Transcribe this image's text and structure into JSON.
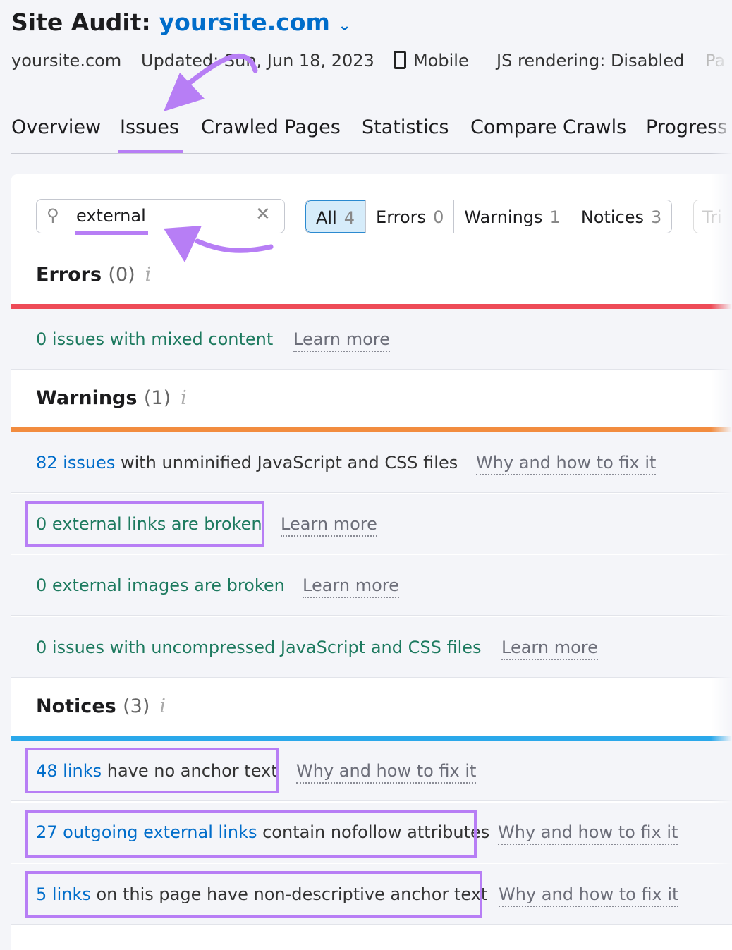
{
  "header": {
    "title": "Site Audit:",
    "project": "yoursite.com",
    "meta": {
      "domain": "yoursite.com",
      "updated": "Updated: Sun, Jun 18, 2023",
      "device": "Mobile",
      "js": "JS rendering: Disabled",
      "more": "Pa"
    }
  },
  "tabs": [
    "Overview",
    "Issues",
    "Crawled Pages",
    "Statistics",
    "Compare Crawls",
    "Progress"
  ],
  "active_tab": "Issues",
  "search": {
    "value": "external"
  },
  "filters": [
    {
      "label": "All",
      "count": "4"
    },
    {
      "label": "Errors",
      "count": "0"
    },
    {
      "label": "Warnings",
      "count": "1"
    },
    {
      "label": "Notices",
      "count": "3"
    }
  ],
  "filter_extra": "Tri",
  "sections": {
    "errors": {
      "label": "Errors",
      "count": "(0)",
      "color": "#ee4b57",
      "rows": [
        {
          "pre": "0 issues with mixed content",
          "link": "Learn more"
        }
      ]
    },
    "warnings": {
      "label": "Warnings",
      "count": "(1)",
      "color": "#f28c3f",
      "rows": [
        {
          "num": "82 issues",
          "rest": " with unminified JavaScript and CSS files",
          "link": "Why and how to fix it"
        },
        {
          "pre": "0 external links are broken",
          "link": "Learn more"
        },
        {
          "pre": "0 external images are broken",
          "link": "Learn more"
        },
        {
          "pre": "0 issues with uncompressed JavaScript and CSS files",
          "link": "Learn more"
        }
      ]
    },
    "notices": {
      "label": "Notices",
      "count": "(3)",
      "color": "#2aa8ea",
      "rows": [
        {
          "num": "48 links",
          "rest": " have no anchor text",
          "link": "Why and how to fix it"
        },
        {
          "num": "27 outgoing external links",
          "rest": " contain nofollow attributes",
          "link": "Why and how to fix it"
        },
        {
          "num": "5 links",
          "rest": " on this page have non-descriptive anchor text",
          "link": "Why and how to fix it"
        }
      ]
    }
  },
  "annotation_color": "#b77ef5"
}
